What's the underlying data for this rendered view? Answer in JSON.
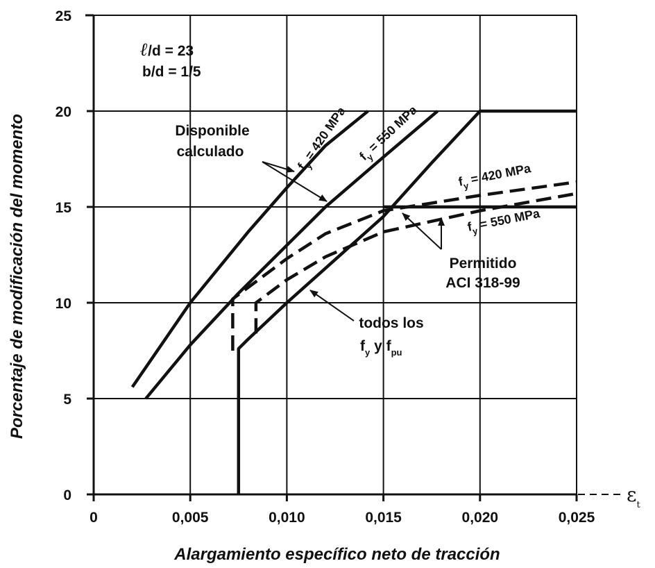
{
  "chart_data": {
    "type": "line",
    "xlabel": "Alargamiento específico neto de tracción",
    "ylabel": "Porcentaje de modificación del momento",
    "xlim": [
      0,
      0.025
    ],
    "ylim": [
      0,
      25
    ],
    "x_ticks": [
      {
        "value": 0,
        "label": "0"
      },
      {
        "value": 0.005,
        "label": "0,005"
      },
      {
        "value": 0.01,
        "label": "0,010"
      },
      {
        "value": 0.015,
        "label": "0,015"
      },
      {
        "value": 0.02,
        "label": "0,020"
      },
      {
        "value": 0.025,
        "label": "0,025"
      }
    ],
    "y_ticks": [
      {
        "value": 0,
        "label": "0"
      },
      {
        "value": 5,
        "label": "5"
      },
      {
        "value": 10,
        "label": "10"
      },
      {
        "value": 15,
        "label": "15"
      },
      {
        "value": 20,
        "label": "20"
      },
      {
        "value": 25,
        "label": "25"
      }
    ],
    "grid": true,
    "strain_symbol": "ε",
    "strain_subscript": "t",
    "parameters": {
      "line1": "/d = 23",
      "line2": "b/d = 1/5"
    },
    "series": [
      {
        "style": "solid",
        "label_base": "f",
        "label_sub": "y",
        "label_rest": " = 420 MPa",
        "points": [
          [
            0.002,
            5.6
          ],
          [
            0.005,
            10.0
          ],
          [
            0.008,
            13.7
          ],
          [
            0.01,
            16.0
          ],
          [
            0.012,
            18.2
          ],
          [
            0.0142,
            20.0
          ]
        ]
      },
      {
        "style": "solid",
        "label_base": "f",
        "label_sub": "y",
        "label_rest": " = 550 MPa",
        "points": [
          [
            0.0027,
            5.0
          ],
          [
            0.005,
            7.8
          ],
          [
            0.0075,
            10.5
          ],
          [
            0.01,
            13.0
          ],
          [
            0.012,
            15.0
          ],
          [
            0.015,
            17.6
          ],
          [
            0.0178,
            20.0
          ]
        ]
      },
      {
        "style": "solid",
        "label": "todos los",
        "points": [
          [
            0.0075,
            0.0
          ],
          [
            0.0075,
            7.6
          ],
          [
            0.008,
            8.1
          ],
          [
            0.01,
            10.0
          ],
          [
            0.012,
            11.8
          ],
          [
            0.015,
            14.5
          ],
          [
            0.0175,
            17.3
          ],
          [
            0.02,
            20.0
          ],
          [
            0.025,
            20.0
          ]
        ]
      },
      {
        "style": "dashed",
        "label_base": "f",
        "label_sub": "y",
        "label_rest": " = 420 MPa",
        "points": [
          [
            0.0072,
            7.5
          ],
          [
            0.0072,
            10.2
          ],
          [
            0.01,
            12.3
          ],
          [
            0.012,
            13.6
          ],
          [
            0.015,
            14.8
          ],
          [
            0.02,
            15.6
          ],
          [
            0.025,
            16.3
          ]
        ]
      },
      {
        "style": "dashed",
        "label_base": "f",
        "label_sub": "y",
        "label_rest": " = 550 MPa",
        "points": [
          [
            0.0084,
            8.4
          ],
          [
            0.0084,
            10.0
          ],
          [
            0.01,
            11.2
          ],
          [
            0.012,
            12.4
          ],
          [
            0.015,
            13.7
          ],
          [
            0.02,
            14.8
          ],
          [
            0.025,
            15.7
          ]
        ]
      },
      {
        "style": "solid",
        "label": "",
        "points": [
          [
            0.015,
            15.0
          ],
          [
            0.025,
            15.0
          ]
        ]
      }
    ],
    "annotations": {
      "disponible": [
        "Disponible",
        "calculado"
      ],
      "permitido": [
        "Permitido",
        "ACI 318-99"
      ],
      "todos": [
        "todos los"
      ],
      "fy_fpu": {
        "a": "f",
        "a_sub": "y",
        "mid": " y f",
        "b_sub": "pu"
      }
    }
  }
}
